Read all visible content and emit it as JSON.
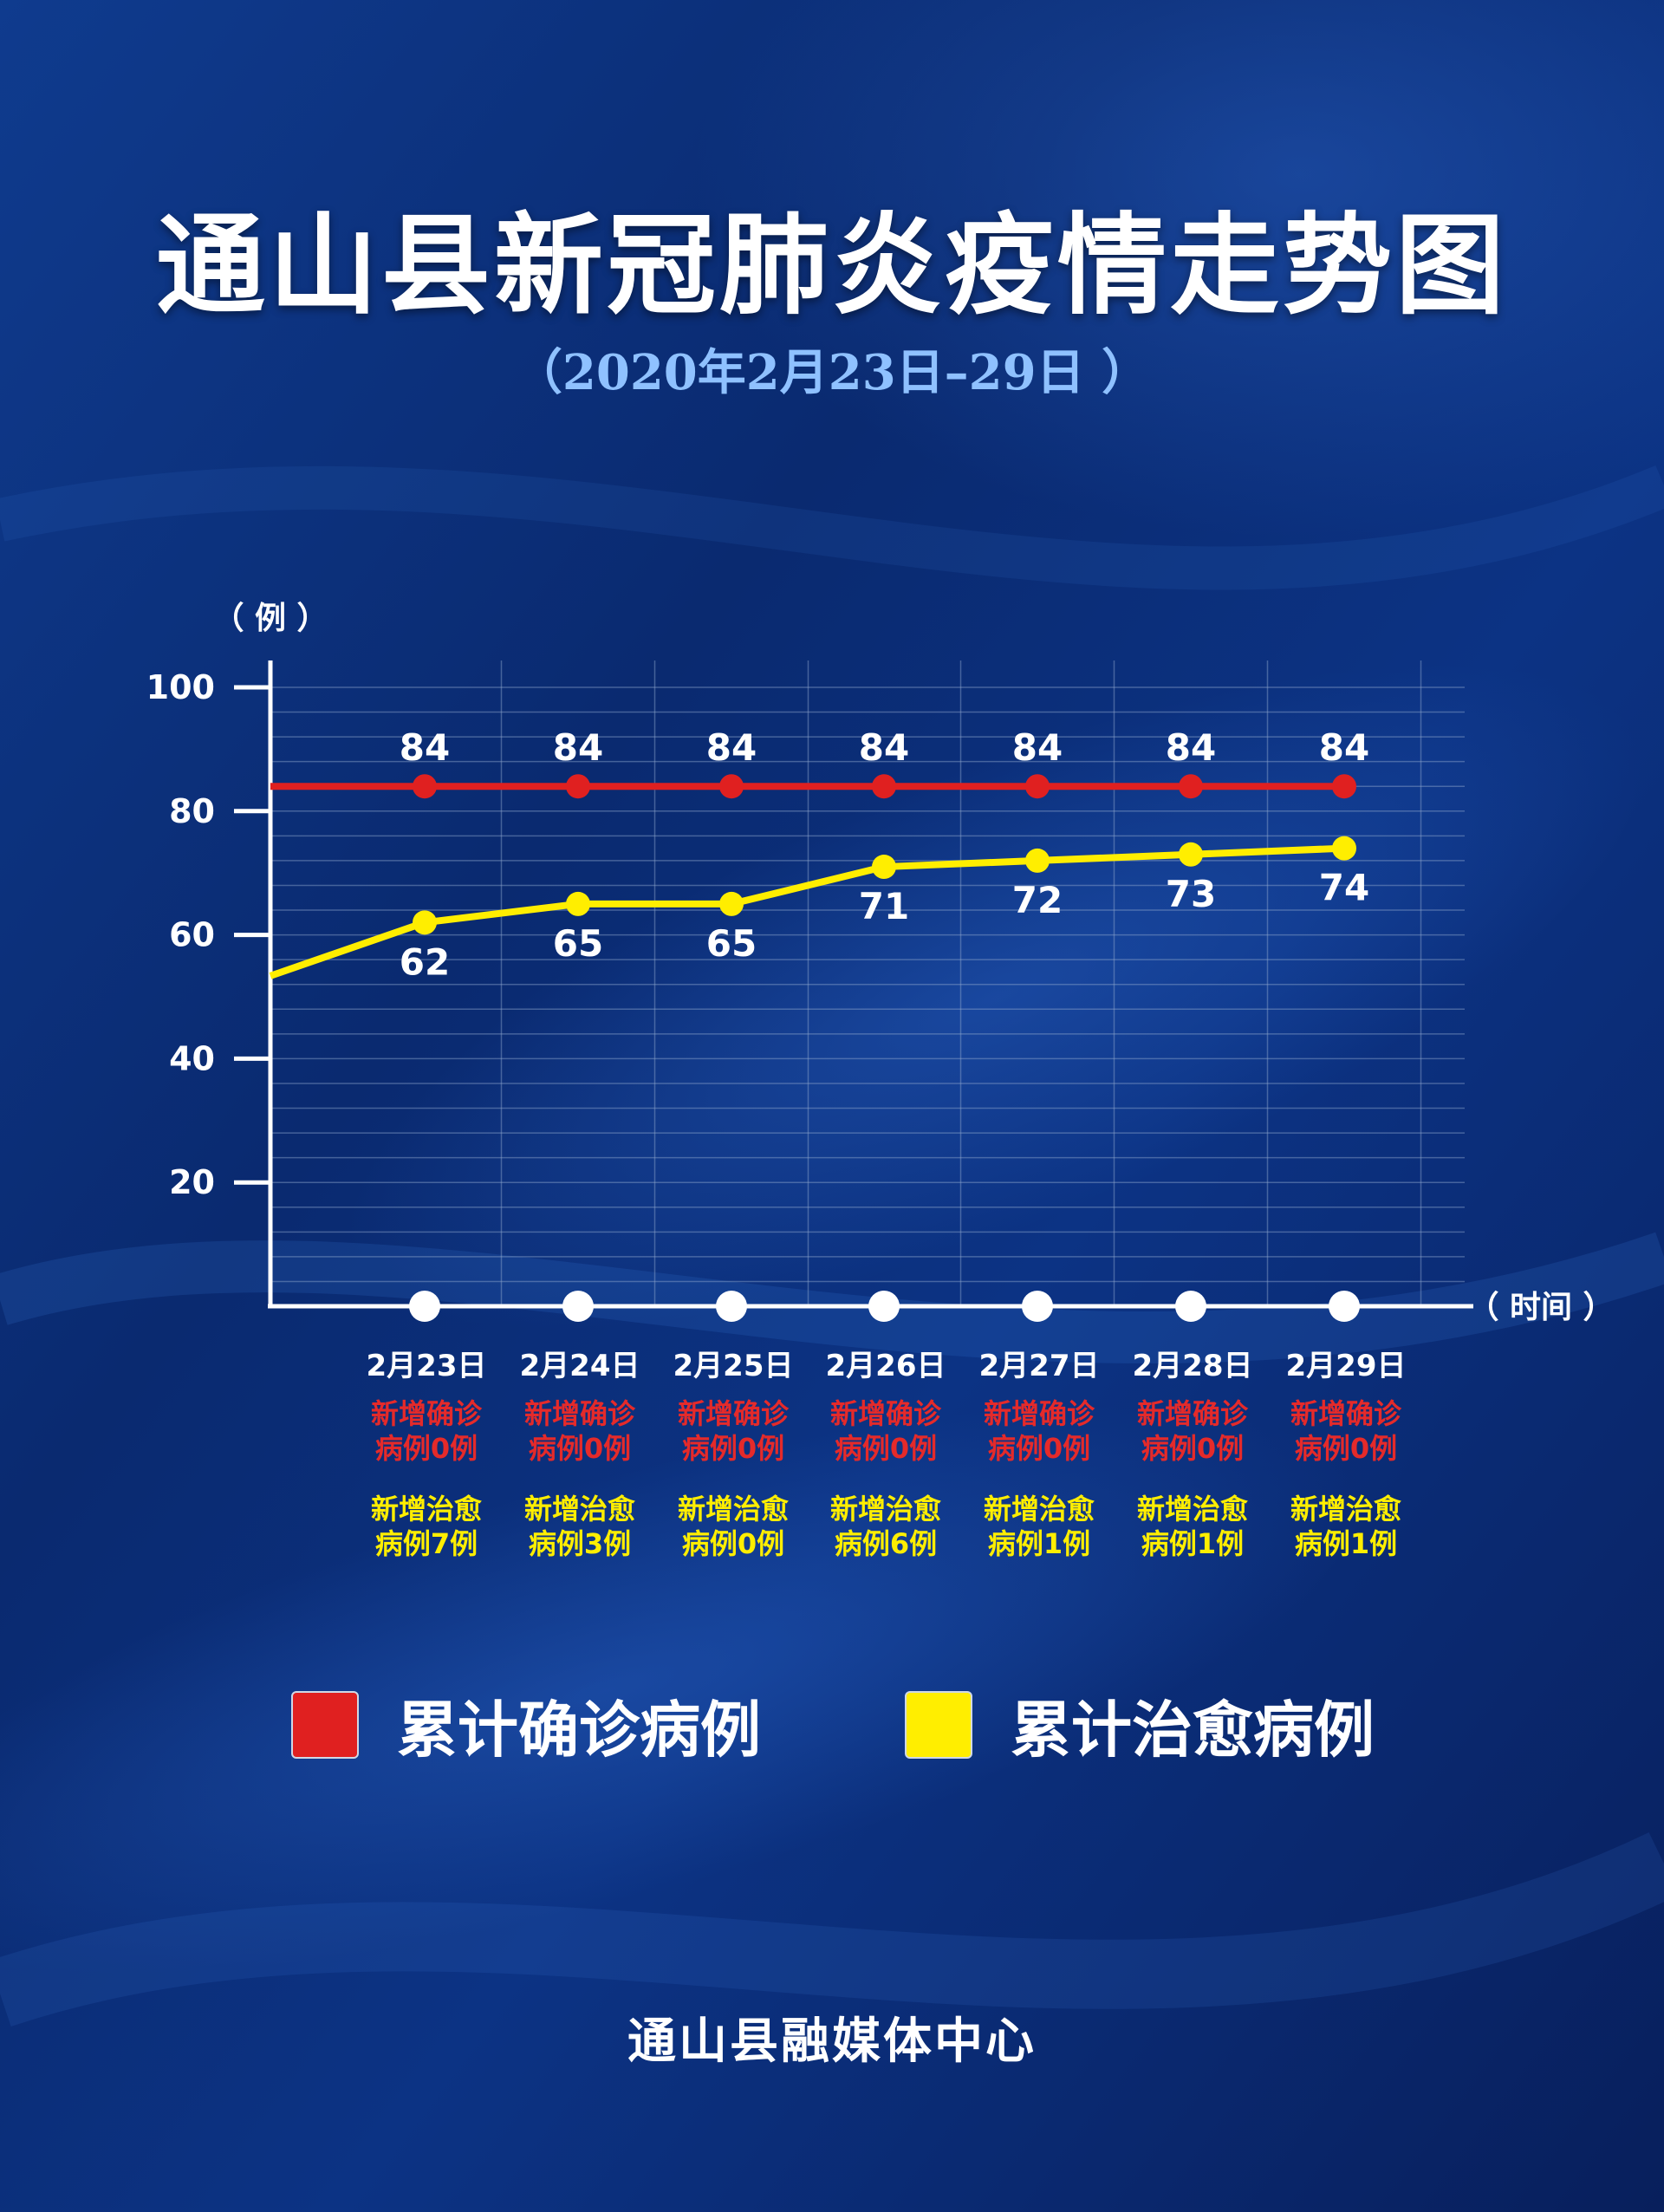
{
  "title": "通山县新冠肺炎疫情走势图",
  "subtitle": "（2020年2月23日–29日 ）",
  "chart_data": {
    "type": "line",
    "title": "通山县新冠肺炎疫情走势图",
    "ylabel": "（ 例 ）",
    "xlabel": "（ 时间 ）",
    "ylim": [
      0,
      100
    ],
    "yticks": [
      20,
      40,
      60,
      80,
      100
    ],
    "categories": [
      "2月23日",
      "2月24日",
      "2月25日",
      "2月26日",
      "2月27日",
      "2月28日",
      "2月29日"
    ],
    "series": [
      {
        "name": "累计确诊病例",
        "values": [
          84,
          84,
          84,
          84,
          84,
          84,
          84
        ],
        "labels": [
          "84",
          "84",
          "84",
          "84",
          "84",
          "84",
          "84"
        ],
        "color": "#e02020"
      },
      {
        "name": "累计治愈病例",
        "values": [
          62,
          65,
          65,
          71,
          72,
          73,
          74
        ],
        "labels": [
          "62",
          "65",
          "65",
          "71",
          "72",
          "73",
          "74"
        ],
        "color": "#ffee00"
      }
    ],
    "grid": true,
    "legend": "bottom"
  },
  "days": [
    {
      "date": "2月23日",
      "confirmed": [
        "新增确诊",
        "病例0例"
      ],
      "cured": [
        "新增治愈",
        "病例7例"
      ]
    },
    {
      "date": "2月24日",
      "confirmed": [
        "新增确诊",
        "病例0例"
      ],
      "cured": [
        "新增治愈",
        "病例3例"
      ]
    },
    {
      "date": "2月25日",
      "confirmed": [
        "新增确诊",
        "病例0例"
      ],
      "cured": [
        "新增治愈",
        "病例0例"
      ]
    },
    {
      "date": "2月26日",
      "confirmed": [
        "新增确诊",
        "病例0例"
      ],
      "cured": [
        "新增治愈",
        "病例6例"
      ]
    },
    {
      "date": "2月27日",
      "confirmed": [
        "新增确诊",
        "病例0例"
      ],
      "cured": [
        "新增治愈",
        "病例1例"
      ]
    },
    {
      "date": "2月28日",
      "confirmed": [
        "新增确诊",
        "病例0例"
      ],
      "cured": [
        "新增治愈",
        "病例1例"
      ]
    },
    {
      "date": "2月29日",
      "confirmed": [
        "新增确诊",
        "病例0例"
      ],
      "cured": [
        "新增治愈",
        "病例1例"
      ]
    }
  ],
  "legend": [
    {
      "label": "累计确诊病例",
      "color": "#e02020"
    },
    {
      "label": "累计治愈病例",
      "color": "#ffee00"
    }
  ],
  "footer": "通山县融媒体中心"
}
